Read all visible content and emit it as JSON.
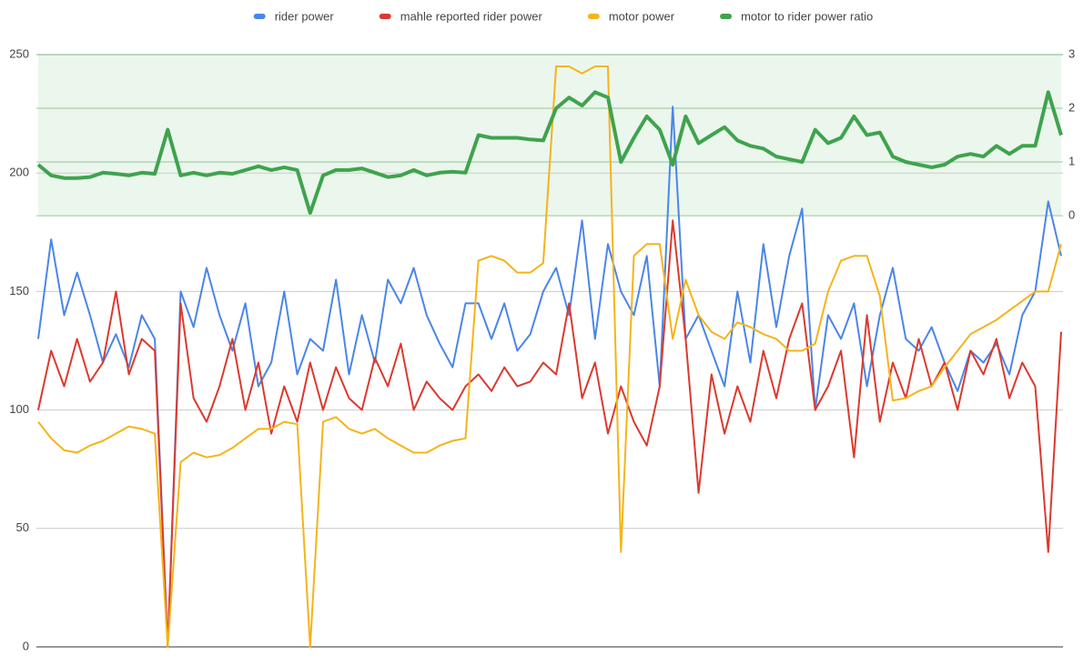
{
  "chart_data": {
    "type": "line",
    "series": [
      {
        "name": "rider power",
        "color": "#4a86e8",
        "values": [
          130,
          172,
          140,
          158,
          140,
          120,
          132,
          118,
          140,
          130,
          0,
          150,
          135,
          160,
          140,
          125,
          145,
          110,
          120,
          150,
          115,
          130,
          125,
          155,
          115,
          140,
          120,
          155,
          145,
          160,
          140,
          128,
          118,
          145,
          145,
          130,
          145,
          125,
          132,
          150,
          160,
          140,
          180,
          130,
          170,
          150,
          140,
          165,
          110,
          228,
          130,
          140,
          125,
          110,
          150,
          120,
          170,
          135,
          165,
          185,
          100,
          140,
          130,
          145,
          110,
          140,
          160,
          130,
          125,
          135,
          120,
          108,
          125,
          120,
          128,
          115,
          140,
          150,
          188,
          165
        ]
      },
      {
        "name": "mahle reported rider power",
        "color": "#db3a2e",
        "values": [
          100,
          125,
          110,
          130,
          112,
          120,
          150,
          115,
          130,
          125,
          0,
          145,
          105,
          95,
          110,
          130,
          100,
          120,
          90,
          110,
          95,
          120,
          100,
          118,
          105,
          100,
          122,
          110,
          128,
          100,
          112,
          105,
          100,
          110,
          115,
          108,
          118,
          110,
          112,
          120,
          115,
          145,
          105,
          120,
          90,
          110,
          95,
          85,
          110,
          180,
          130,
          65,
          115,
          90,
          110,
          95,
          125,
          105,
          130,
          145,
          100,
          110,
          125,
          80,
          140,
          95,
          120,
          105,
          130,
          110,
          120,
          100,
          125,
          115,
          130,
          105,
          120,
          110,
          40,
          133
        ]
      },
      {
        "name": "motor power",
        "color": "#f4b41a",
        "values": [
          95,
          88,
          83,
          82,
          85,
          87,
          90,
          93,
          92,
          90,
          0,
          78,
          82,
          80,
          81,
          84,
          88,
          92,
          92,
          95,
          94,
          0,
          95,
          97,
          92,
          90,
          92,
          88,
          85,
          82,
          82,
          85,
          87,
          88,
          163,
          165,
          163,
          158,
          158,
          162,
          245,
          245,
          242,
          245,
          245,
          40,
          165,
          170,
          170,
          130,
          155,
          140,
          133,
          130,
          137,
          135,
          132,
          130,
          125,
          125,
          128,
          150,
          163,
          165,
          165,
          148,
          104,
          105,
          108,
          110,
          118,
          125,
          132,
          135,
          138,
          142,
          146,
          150,
          150,
          170
        ]
      },
      {
        "name": "motor to rider power ratio",
        "color": "#3fa34d",
        "axis": "y2",
        "values": [
          0.95,
          0.75,
          0.7,
          0.7,
          0.72,
          0.8,
          0.78,
          0.75,
          0.8,
          0.78,
          1.6,
          0.75,
          0.8,
          0.75,
          0.8,
          0.78,
          0.85,
          0.92,
          0.85,
          0.9,
          0.85,
          0.05,
          0.75,
          0.85,
          0.85,
          0.88,
          0.8,
          0.72,
          0.75,
          0.85,
          0.75,
          0.8,
          0.82,
          0.8,
          1.5,
          1.45,
          1.45,
          1.45,
          1.42,
          1.4,
          2.0,
          2.2,
          2.05,
          2.3,
          2.2,
          1.0,
          1.45,
          1.85,
          1.6,
          0.95,
          1.85,
          1.35,
          1.5,
          1.65,
          1.4,
          1.3,
          1.25,
          1.1,
          1.05,
          1.0,
          1.6,
          1.35,
          1.45,
          1.85,
          1.5,
          1.55,
          1.1,
          1.0,
          0.95,
          0.9,
          0.95,
          1.1,
          1.15,
          1.1,
          1.3,
          1.15,
          1.3,
          1.3,
          2.3,
          1.5
        ]
      }
    ],
    "ylim": [
      0,
      250
    ],
    "yticks": [
      0,
      50,
      100,
      150,
      200,
      250
    ],
    "y2lim": [
      -8.03,
      3
    ],
    "y2ticks": [
      0,
      1,
      2,
      3
    ],
    "grid": true,
    "legend": "top"
  }
}
